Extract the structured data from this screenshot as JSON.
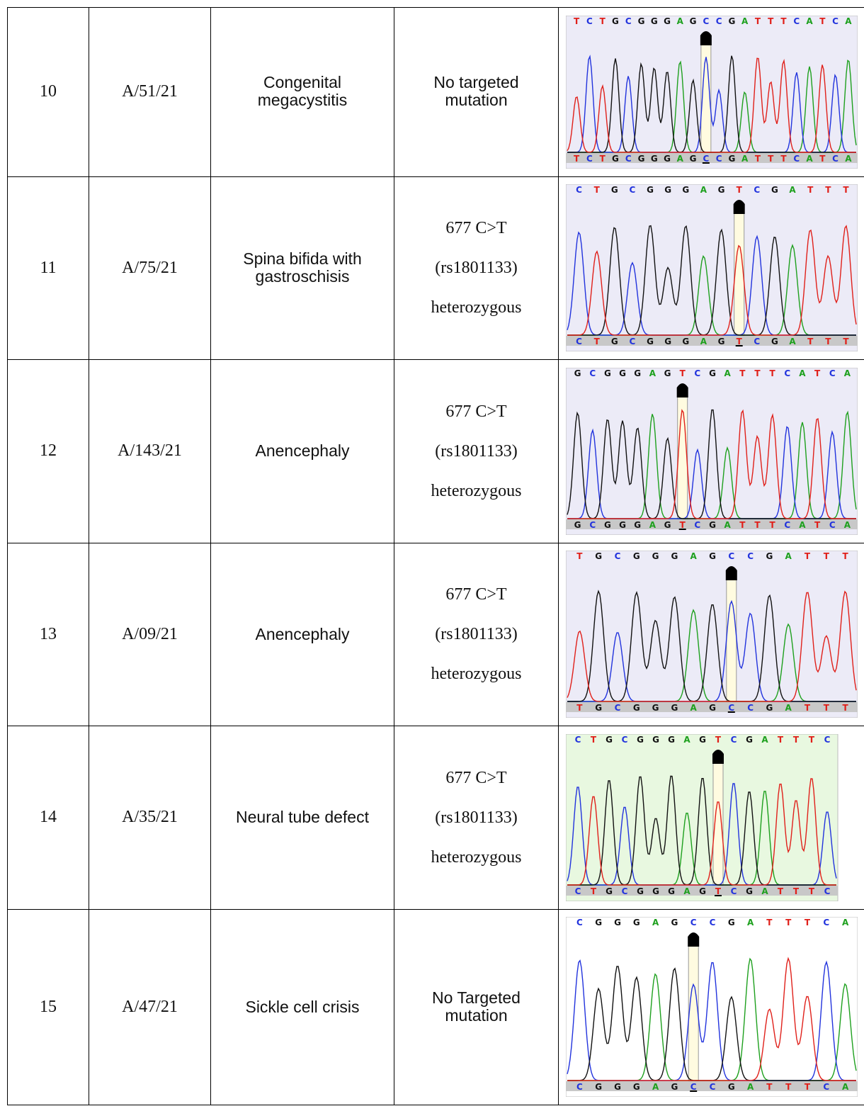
{
  "table": {
    "rows": [
      {
        "no": "10",
        "id": "A/51/21",
        "diagnosis": "Congenital megacystitis",
        "result": [
          "No targeted mutation"
        ],
        "sequence": [
          "T",
          "C",
          "T",
          "G",
          "C",
          "G",
          "G",
          "G",
          "A",
          "G",
          "C",
          "C",
          "G",
          "A",
          "T",
          "T",
          "T",
          "C",
          "A",
          "T",
          "C",
          "A"
        ]
      },
      {
        "no": "11",
        "id": "A/75/21",
        "diagnosis": "Spina bifida with gastroschisis",
        "result": [
          "677 C>T",
          "(rs1801133)",
          "heterozygous"
        ],
        "sequence": [
          "C",
          "T",
          "G",
          "C",
          "G",
          "G",
          "G",
          "A",
          "G",
          "T",
          "C",
          "G",
          "A",
          "T",
          "T",
          "T"
        ]
      },
      {
        "no": "12",
        "id": "A/143/21",
        "diagnosis": "Anencephaly",
        "result": [
          "677 C>T",
          "(rs1801133)",
          "heterozygous"
        ],
        "sequence": [
          "G",
          "C",
          "G",
          "G",
          "G",
          "A",
          "G",
          "T",
          "C",
          "G",
          "A",
          "T",
          "T",
          "T",
          "C",
          "A",
          "T",
          "C",
          "A"
        ]
      },
      {
        "no": "13",
        "id": "A/09/21",
        "diagnosis": "Anencephaly",
        "result": [
          "677 C>T",
          "(rs1801133)",
          "heterozygous"
        ],
        "sequence": [
          "T",
          "G",
          "C",
          "G",
          "G",
          "G",
          "A",
          "G",
          "C",
          "C",
          "G",
          "A",
          "T",
          "T",
          "T"
        ]
      },
      {
        "no": "14",
        "id": "A/35/21",
        "diagnosis": "Neural tube defect",
        "result": [
          "677 C>T",
          "(rs1801133)",
          "heterozygous"
        ],
        "sequence": [
          "C",
          "T",
          "G",
          "C",
          "G",
          "G",
          "G",
          "A",
          "G",
          "T",
          "C",
          "G",
          "A",
          "T",
          "T",
          "T",
          "C"
        ]
      },
      {
        "no": "15",
        "id": "A/47/21",
        "diagnosis": "Sickle cell crisis",
        "result": [
          "No Targeted mutation"
        ],
        "sequence": [
          "C",
          "G",
          "G",
          "G",
          "A",
          "G",
          "C",
          "C",
          "G",
          "A",
          "T",
          "T",
          "T",
          "C",
          "A"
        ]
      }
    ]
  }
}
